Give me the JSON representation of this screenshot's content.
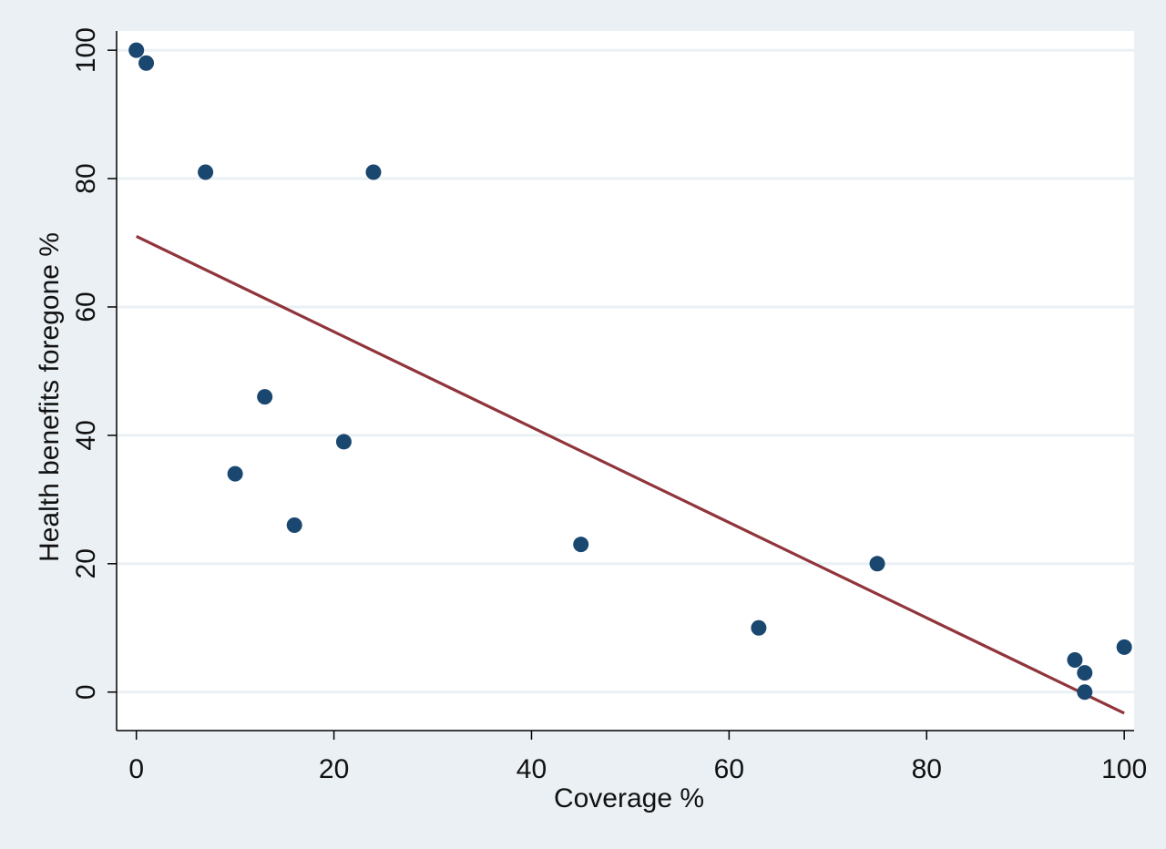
{
  "chart_data": {
    "type": "scatter",
    "title": "",
    "xlabel": "Coverage %",
    "ylabel": "Health benefits foregone %",
    "xlim": [
      -2,
      101
    ],
    "ylim": [
      -6,
      103
    ],
    "xticks": [
      0,
      20,
      40,
      60,
      80,
      100
    ],
    "yticks": [
      0,
      20,
      40,
      60,
      80,
      100
    ],
    "grid": "horizontal",
    "legend": "none",
    "series": [
      {
        "type": "scatter",
        "color": "#1a476f",
        "x": [
          0,
          1,
          7,
          24,
          13,
          21,
          10,
          16,
          45,
          75,
          63,
          95,
          96,
          96,
          100
        ],
        "y": [
          100,
          98,
          81,
          81,
          46,
          39,
          34,
          26,
          23,
          20,
          10,
          5,
          3,
          0,
          7
        ]
      },
      {
        "type": "line",
        "color": "#90353b",
        "x": [
          0,
          100
        ],
        "y": [
          71,
          -3.3
        ]
      }
    ],
    "colors": {
      "background": "#eaf0f4",
      "plot_background": "#ffffff",
      "grid": "#eaf0f4",
      "axis": "#000000"
    }
  }
}
